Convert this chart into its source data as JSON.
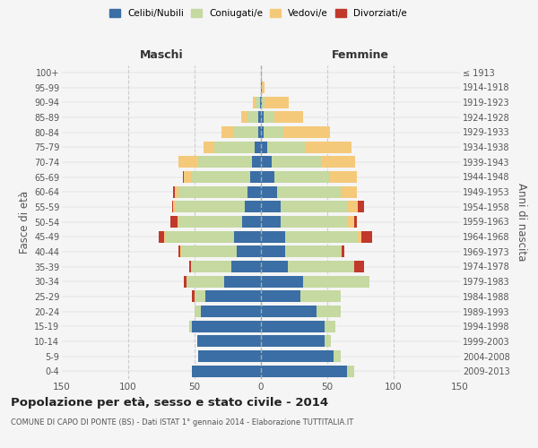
{
  "age_groups": [
    "0-4",
    "5-9",
    "10-14",
    "15-19",
    "20-24",
    "25-29",
    "30-34",
    "35-39",
    "40-44",
    "45-49",
    "50-54",
    "55-59",
    "60-64",
    "65-69",
    "70-74",
    "75-79",
    "80-84",
    "85-89",
    "90-94",
    "95-99",
    "100+"
  ],
  "birth_years": [
    "2009-2013",
    "2004-2008",
    "1999-2003",
    "1994-1998",
    "1989-1993",
    "1984-1988",
    "1979-1983",
    "1974-1978",
    "1969-1973",
    "1964-1968",
    "1959-1963",
    "1954-1958",
    "1949-1953",
    "1944-1948",
    "1939-1943",
    "1934-1938",
    "1929-1933",
    "1924-1928",
    "1919-1923",
    "1914-1918",
    "≤ 1913"
  ],
  "maschi": {
    "celibi": [
      52,
      47,
      48,
      52,
      45,
      42,
      28,
      22,
      18,
      20,
      14,
      12,
      10,
      8,
      7,
      5,
      2,
      2,
      1,
      0,
      0
    ],
    "coniugati": [
      0,
      0,
      0,
      2,
      5,
      8,
      28,
      30,
      42,
      52,
      48,
      52,
      52,
      45,
      40,
      30,
      18,
      8,
      3,
      0,
      0
    ],
    "vedovi": [
      0,
      0,
      0,
      0,
      0,
      0,
      0,
      1,
      1,
      1,
      1,
      2,
      3,
      5,
      15,
      8,
      10,
      5,
      2,
      0,
      0
    ],
    "divorziati": [
      0,
      0,
      0,
      0,
      0,
      2,
      2,
      1,
      1,
      4,
      5,
      1,
      1,
      1,
      0,
      0,
      0,
      0,
      0,
      0,
      0
    ]
  },
  "femmine": {
    "nubili": [
      65,
      55,
      48,
      48,
      42,
      30,
      32,
      20,
      18,
      18,
      15,
      15,
      12,
      10,
      8,
      5,
      2,
      2,
      1,
      1,
      0
    ],
    "coniugate": [
      5,
      5,
      5,
      8,
      18,
      30,
      50,
      50,
      42,
      55,
      50,
      50,
      48,
      42,
      38,
      28,
      15,
      8,
      2,
      0,
      0
    ],
    "vedove": [
      0,
      0,
      0,
      0,
      0,
      0,
      0,
      0,
      1,
      3,
      5,
      8,
      12,
      20,
      25,
      35,
      35,
      22,
      18,
      2,
      0
    ],
    "divorziate": [
      0,
      0,
      0,
      0,
      0,
      0,
      0,
      8,
      2,
      8,
      2,
      5,
      0,
      0,
      0,
      0,
      0,
      0,
      0,
      0,
      0
    ]
  },
  "colors": {
    "celibi": "#3a6ea5",
    "coniugati": "#c5d9a0",
    "vedovi": "#f5c97a",
    "divorziati": "#c0392b"
  },
  "xlim": 150,
  "title": "Popolazione per età, sesso e stato civile - 2014",
  "subtitle": "COMUNE DI CAPO DI PONTE (BS) - Dati ISTAT 1° gennaio 2014 - Elaborazione TUTTITALIA.IT",
  "ylabel_left": "Fasce di età",
  "ylabel_right": "Anni di nascita",
  "xlabel_maschi": "Maschi",
  "xlabel_femmine": "Femmine",
  "bg_color": "#f5f5f5",
  "grid_color": "#cccccc"
}
